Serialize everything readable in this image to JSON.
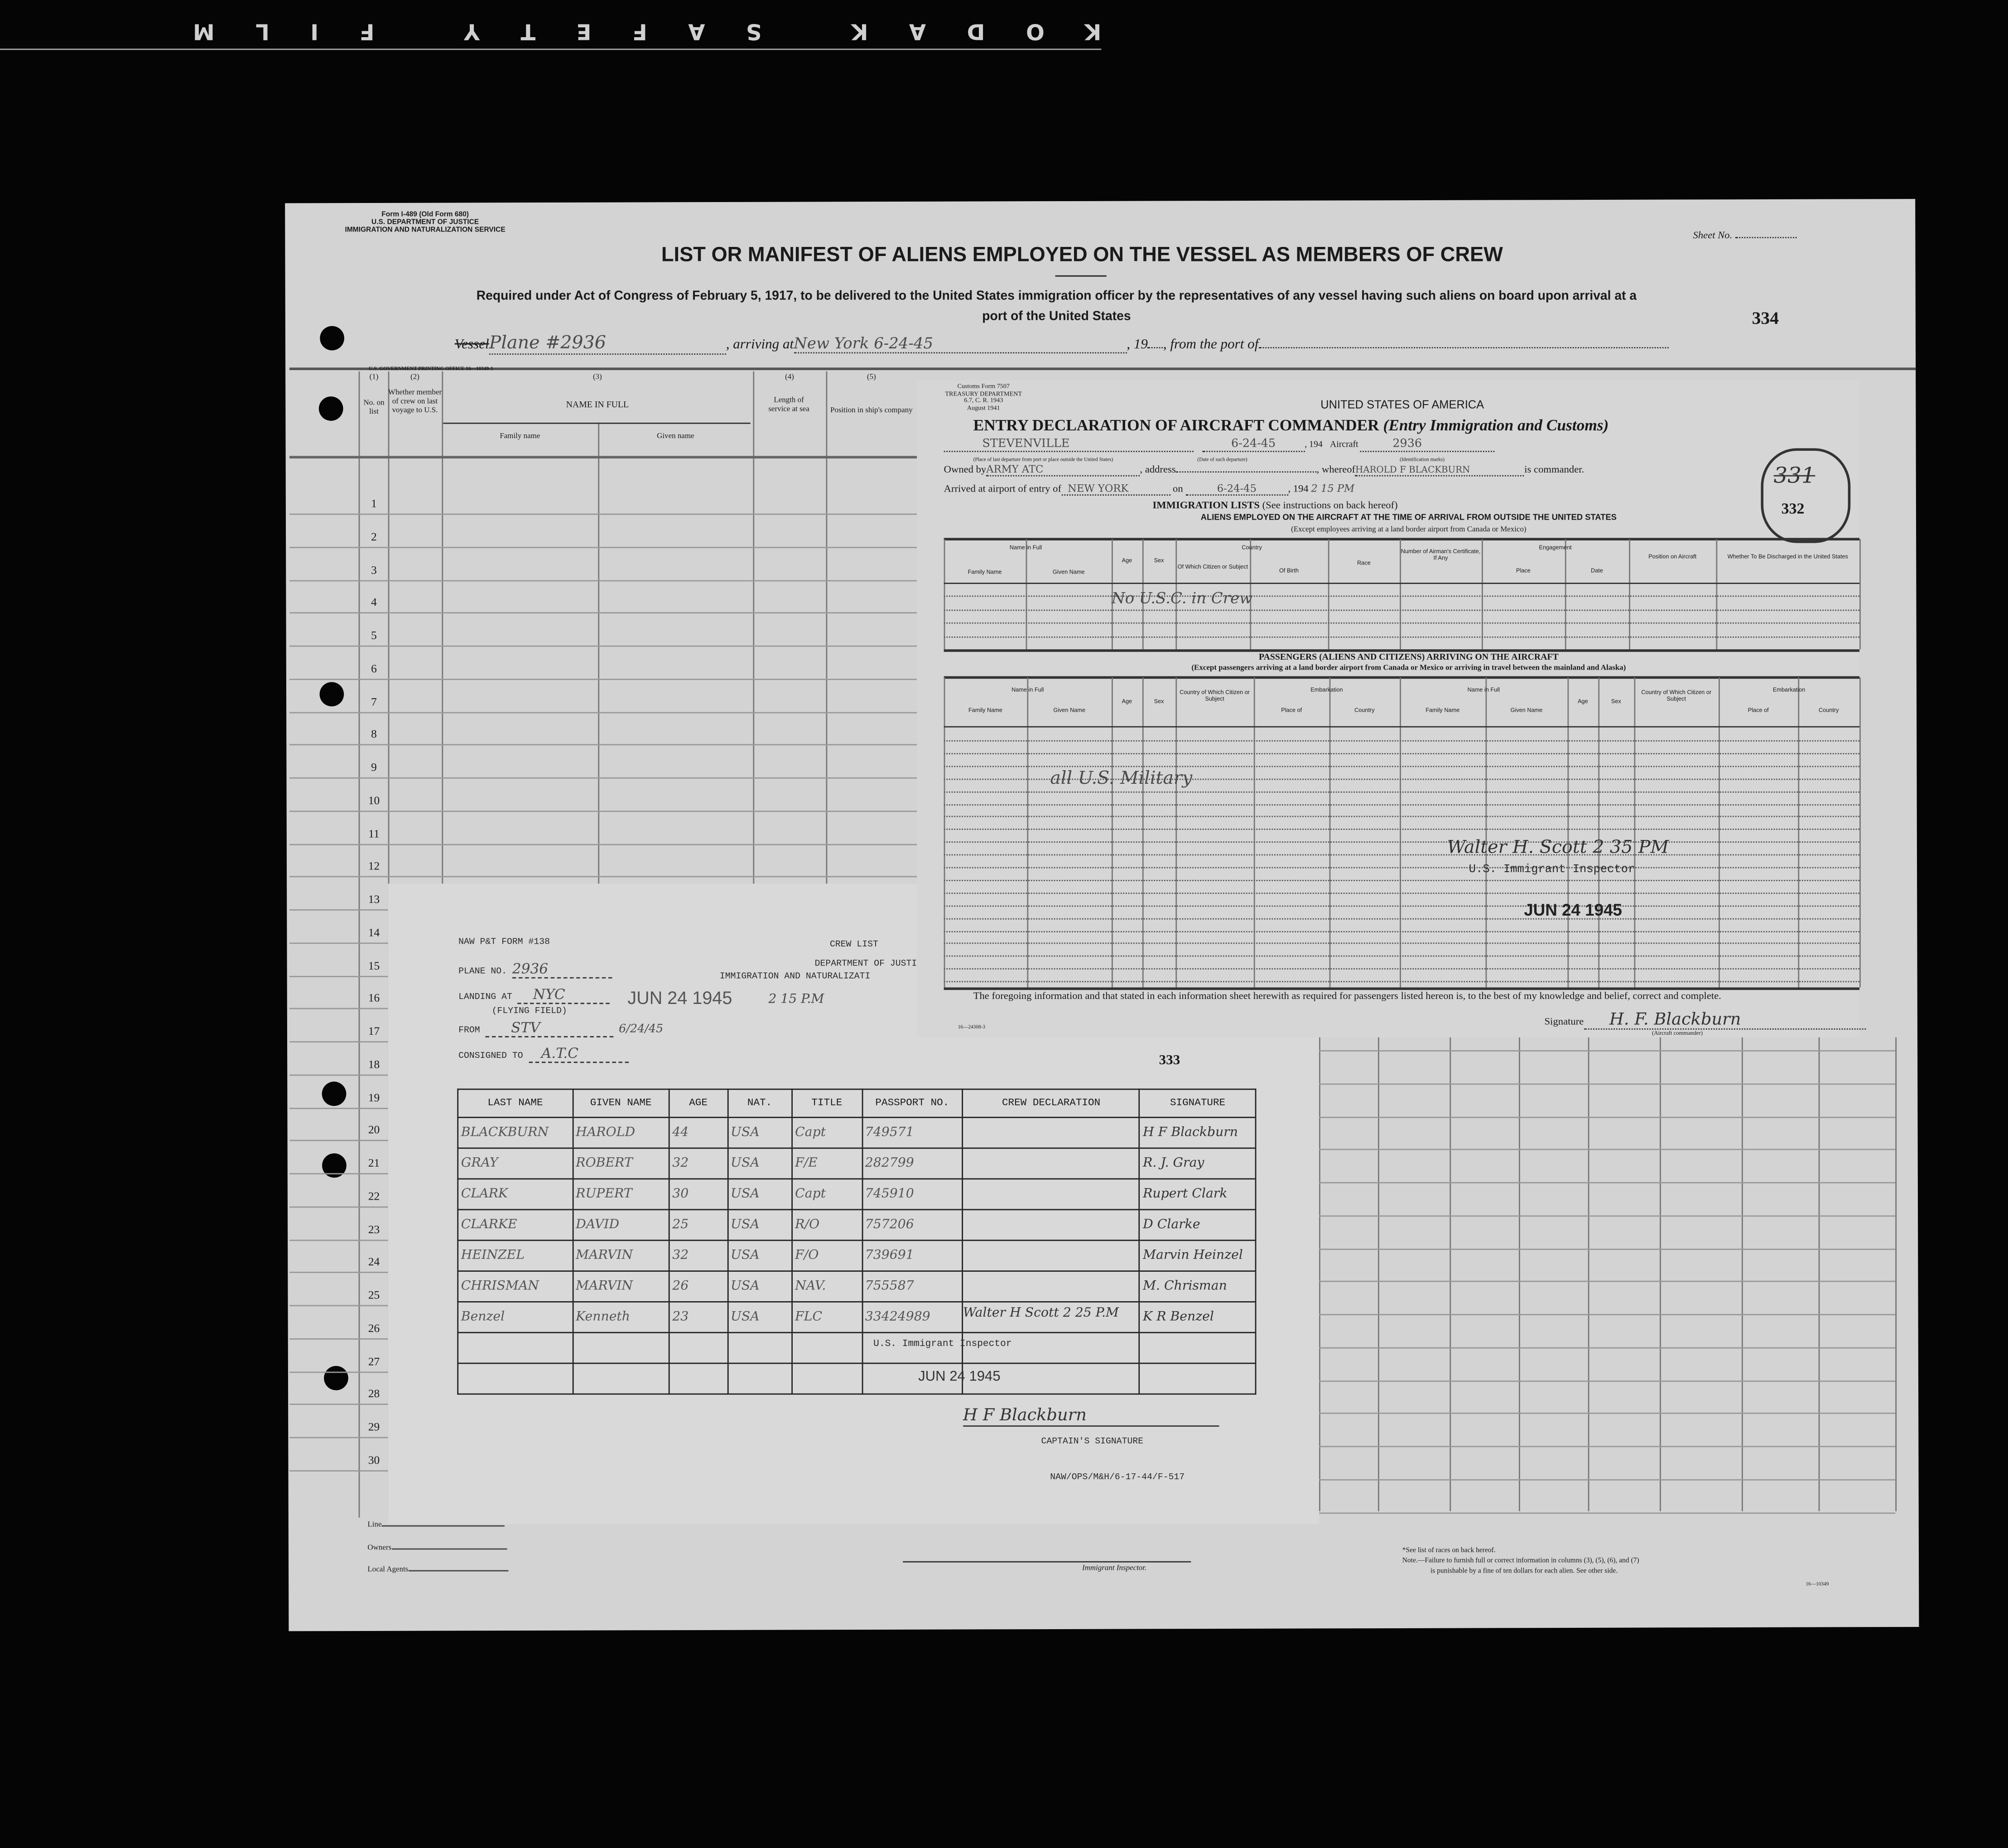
{
  "film_edge": "KODAK SAFETY FILM",
  "form": {
    "form_id": "Form I-489 (Old Form 680)",
    "dept": "U.S. DEPARTMENT OF JUSTICE",
    "service": "IMMIGRATION AND NATURALIZATION SERVICE",
    "sheet_label": "Sheet No.",
    "title": "LIST OR MANIFEST OF ALIENS EMPLOYED ON THE VESSEL AS MEMBERS OF CREW",
    "subtitle_1": "Required under Act of Congress of February 5, 1917, to be delivered to the United States immigration officer by the representatives of any vessel having such aliens on board upon arrival at a",
    "subtitle_2": "port of the United States",
    "page_number": "334",
    "vessel_label": "Vessel",
    "vessel_value": "Plane #2936",
    "arriving_label": ", arriving at",
    "arriving_value": "New York   6-24-45",
    "year_label": ", 19",
    "from_port_label": ", from the port of",
    "printer": "U.S. GOVERNMENT PRINTING OFFICE   16—10349-1",
    "columns": {
      "c1_num": "(1)",
      "c1": "No. on list",
      "c2_num": "(2)",
      "c2": "Whether member of crew on last voyage to U.S.",
      "c3_num": "(3)",
      "c3": "NAME IN FULL",
      "c3a": "Family name",
      "c3b": "Given name",
      "c4_num": "(4)",
      "c4": "Length of service at sea",
      "c5_num": "(5)",
      "c5": "Position in ship's company"
    },
    "row_numbers": [
      "1",
      "2",
      "3",
      "4",
      "5",
      "6",
      "7",
      "8",
      "9",
      "10",
      "11",
      "12",
      "13",
      "14",
      "15",
      "16",
      "17",
      "18",
      "19",
      "20",
      "21",
      "22",
      "23",
      "24",
      "25",
      "26",
      "27",
      "28",
      "29",
      "30"
    ],
    "footer": {
      "line_label": "Line",
      "owners_label": "Owners",
      "agents_label": "Local Agents",
      "inspector_label": "Immigrant Inspector.",
      "note_races": "*See list of races on back hereof.",
      "note_1": "Note.—Failure to furnish full or correct information in columns (3), (5), (6), and (7)",
      "note_2": "is punishable by a fine of ten dollars for each alien.  See other side.",
      "code": "16—10349"
    }
  },
  "entry_declaration": {
    "customs_form": "Customs Form 7507",
    "treasury": "TREASURY DEPARTMENT",
    "cfr": "6.7, C. R. 1943",
    "date": "August 1941",
    "country": "UNITED STATES OF AMERICA",
    "title": "ENTRY DECLARATION OF AIRCRAFT COMMANDER",
    "title_italic": "(Entry Immigration and Customs)",
    "departure_place": "STEVENVILLE",
    "departure_place_caption": "(Place of last departure from port or place outside the United States)",
    "departure_date": "6-24-45",
    "departure_date_caption": "(Date of such departure)",
    "year_label": ", 194",
    "aircraft_label": "Aircraft",
    "aircraft_value": "2936",
    "aircraft_caption": "(Identification marks)",
    "owned_label": "Owned by",
    "owned_value": "ARMY ATC",
    "address_label": ", address",
    "whereof_label": ", whereof",
    "commander_value": "HAROLD F BLACKBURN",
    "commander_label": "is commander.",
    "arrived_label": "Arrived at airport of entry of",
    "arrived_value": "NEW YORK",
    "on_label": "on",
    "arrived_date": "6-24-45",
    "arrived_time": "2 15 PM",
    "stamp_old": "331",
    "stamp_new": "332",
    "immigration_lists": "IMMIGRATION LISTS",
    "immigration_note": "(See instructions on back hereof)",
    "aliens_heading": "ALIENS EMPLOYED ON THE AIRCRAFT AT THE TIME OF ARRIVAL FROM OUTSIDE THE UNITED STATES",
    "aliens_sub": "(Except employees arriving at a land border airport from Canada or Mexico)",
    "alien_cols": {
      "name_full": "Name in Full",
      "family": "Family Name",
      "given": "Given Name",
      "age": "Age",
      "sex": "Sex",
      "country": "Country",
      "citizen": "Of Which Citizen or Subject",
      "birth": "Of Birth",
      "race": "Race",
      "cert": "Number of Airman's Certificate, If Any",
      "engagement": "Engagement",
      "place": "Place",
      "date": "Date",
      "position": "Position on Aircraft",
      "discharged": "Whether To Be Discharged in the United States"
    },
    "alien_entry": "No U.S.C. in Crew",
    "passengers_heading": "PASSENGERS (ALIENS AND CITIZENS) ARRIVING ON THE AIRCRAFT",
    "passengers_sub": "(Except passengers arriving at a land border airport from Canada or Mexico or arriving in travel between the mainland and Alaska)",
    "passenger_cols": {
      "name_full": "Name in Full",
      "family": "Family Name",
      "given": "Given Name",
      "age": "Age",
      "sex": "Sex",
      "citizen": "Country of Which Citizen or Subject",
      "embarkation": "Embarkation",
      "place": "Place of",
      "country": "Country"
    },
    "passenger_entry": "all U.S. Military",
    "inspector_signature": "Walter H. Scott 2 35 PM",
    "inspector_title": "U.S. Immigrant Inspector",
    "date_stamp": "JUN 24 1945",
    "certification": "The foregoing information and that stated in each information sheet herewith as required for passengers listed hereon is, to the best of my knowledge and belief, correct and complete.",
    "form_code": "16—24308-3",
    "signature_label": "Signature",
    "signature_value": "H. F. Blackburn",
    "signature_caption": "(Aircraft commander)"
  },
  "crew_list": {
    "form_label": "NAW P&T FORM #138",
    "heading": "CREW LIST",
    "dept_1": "DEPARTMENT OF JUSTI",
    "dept_2": "IMMIGRATION AND NATURALIZATI",
    "plane_label": "PLANE NO.",
    "plane_value": "2936",
    "landing_label": "LANDING AT",
    "landing_value": "NYC",
    "landing_stamp": "JUN 24 1945",
    "landing_time": "2 15 P.M",
    "flying_field": "(FLYING FIELD)",
    "from_label": "FROM",
    "from_value": "STV",
    "from_date": "6/24/45",
    "consigned_label": "CONSIGNED TO",
    "consigned_value": "A.T.C",
    "page_number": "333",
    "headers": [
      "LAST NAME",
      "GIVEN NAME",
      "AGE",
      "NAT.",
      "TITLE",
      "PASSPORT NO.",
      "CREW DECLARATION",
      "SIGNATURE"
    ],
    "rows": [
      [
        "BLACKBURN",
        "HAROLD",
        "44",
        "USA",
        "Capt",
        "749571",
        "",
        "H F Blackburn"
      ],
      [
        "GRAY",
        "ROBERT",
        "32",
        "USA",
        "F/E",
        "282799",
        "",
        "R. J. Gray"
      ],
      [
        "CLARK",
        "RUPERT",
        "30",
        "USA",
        "Capt",
        "745910",
        "",
        "Rupert Clark"
      ],
      [
        "CLARKE",
        "DAVID",
        "25",
        "USA",
        "R/O",
        "757206",
        "",
        "D Clarke"
      ],
      [
        "HEINZEL",
        "MARVIN",
        "32",
        "USA",
        "F/O",
        "739691",
        "",
        "Marvin Heinzel"
      ],
      [
        "CHRISMAN",
        "MARVIN",
        "26",
        "USA",
        "NAV.",
        "755587",
        "",
        "M. Chrisman"
      ],
      [
        "Benzel",
        "Kenneth",
        "23",
        "USA",
        "FLC",
        "33424989",
        "",
        "K R Benzel"
      ],
      [
        "",
        "",
        "",
        "",
        "",
        "",
        "",
        ""
      ],
      [
        "",
        "",
        "",
        "",
        "",
        "",
        "",
        ""
      ]
    ],
    "inspector_signature": "Walter H Scott 2 25 P.M",
    "inspector_title": "U.S. Immigrant Inspector",
    "date_stamp": "JUN 24 1945",
    "captain_signature": "H F Blackburn",
    "captain_label": "CAPTAIN'S SIGNATURE",
    "ref_code": "NAW/OPS/M&H/6-17-44/F-517"
  }
}
